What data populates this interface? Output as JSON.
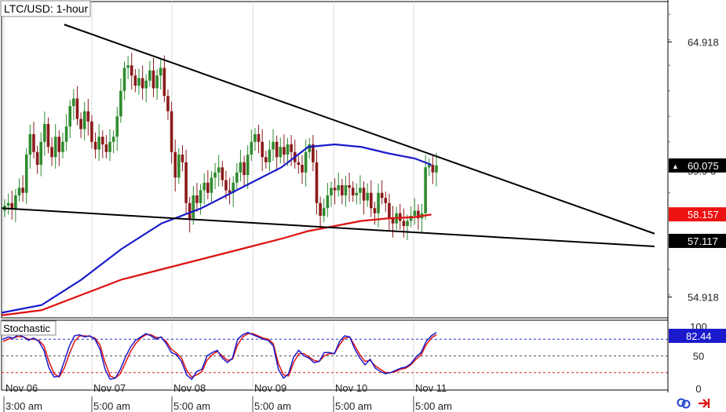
{
  "chart_data": {
    "type": "candlestick",
    "title": "LTC/USD: 1-hour",
    "ylim": [
      54.1,
      66.5
    ],
    "y_ticks": [
      64.918,
      54.918
    ],
    "y_tick_labels": [
      "64.918",
      "54.918"
    ],
    "x_dates": [
      "Nov 06",
      "Nov 07",
      "Nov 08",
      "Nov 09",
      "Nov 10",
      "Nov 11"
    ],
    "x_times": [
      "3:00 am",
      "5:00 am",
      "5:00 am",
      "5:00 am",
      "5:00 am",
      "5:00 am"
    ],
    "price_tags": [
      {
        "label": "60.075",
        "value": 60.075,
        "color": "#000000",
        "text_color": "#ffffff",
        "marker": "▲"
      },
      {
        "label": "58.157",
        "value": 58.157,
        "color": "#ee1111",
        "text_color": "#ffffff"
      },
      {
        "label": "57.117",
        "value": 57.117,
        "color": "#000000",
        "text_color": "#ffffff"
      }
    ],
    "hidden_tag_partial": "59.9 6",
    "candle_closes": [
      58.5,
      58.6,
      58.4,
      58.9,
      59.2,
      59.0,
      60.5,
      61.3,
      60.6,
      60.1,
      61.0,
      61.7,
      60.8,
      60.4,
      61.2,
      60.6,
      61.0,
      61.6,
      62.4,
      62.7,
      61.9,
      61.5,
      62.2,
      61.8,
      61.0,
      60.7,
      61.2,
      60.9,
      60.6,
      61.0,
      61.2,
      62.0,
      63.0,
      63.9,
      64.0,
      63.6,
      63.2,
      63.5,
      63.1,
      63.4,
      63.8,
      63.1,
      63.6,
      63.9,
      62.8,
      62.2,
      60.6,
      59.6,
      60.5,
      60.2,
      58.6,
      58.0,
      58.9,
      58.6,
      59.1,
      59.4,
      59.0,
      59.6,
      59.8,
      60.0,
      59.5,
      59.1,
      59.0,
      59.4,
      59.8,
      60.2,
      59.7,
      60.5,
      61.0,
      61.3,
      61.0,
      60.4,
      60.2,
      60.7,
      61.0,
      60.4,
      60.8,
      60.5,
      60.9,
      60.6,
      60.2,
      60.1,
      59.8,
      60.6,
      60.9,
      60.2,
      58.6,
      58.1,
      58.4,
      58.9,
      59.2,
      59.1,
      59.3,
      58.9,
      59.3,
      59.2,
      58.9,
      59.0,
      59.2,
      58.7,
      59.0,
      58.4,
      58.2,
      59.0,
      58.8,
      58.6,
      58.0,
      57.8,
      58.2,
      57.9,
      57.7,
      57.9,
      58.1,
      58.3,
      58.0,
      58.2,
      60.0,
      60.1,
      59.8,
      60.08
    ],
    "lines": [
      {
        "name": "upper-trendline",
        "color": "#000000",
        "x": [
          0.094,
          0.98
        ],
        "y": [
          65.6,
          57.4
        ]
      },
      {
        "name": "lower-trendline",
        "color": "#000000",
        "x": [
          0.0,
          0.98
        ],
        "y": [
          58.4,
          56.9
        ]
      }
    ],
    "ma_fast": {
      "color": "#1a1acc",
      "x": [
        0.0,
        0.06,
        0.12,
        0.18,
        0.24,
        0.3,
        0.36,
        0.42,
        0.46,
        0.5,
        0.54,
        0.58,
        0.62,
        0.645
      ],
      "y": [
        54.3,
        54.6,
        55.6,
        56.8,
        57.8,
        58.4,
        59.2,
        60.0,
        60.8,
        60.9,
        60.8,
        60.55,
        60.35,
        60.1
      ]
    },
    "ma_slow": {
      "color": "#dd1111",
      "x": [
        0.0,
        0.06,
        0.12,
        0.18,
        0.24,
        0.3,
        0.36,
        0.42,
        0.46,
        0.5,
        0.54,
        0.58,
        0.62,
        0.645
      ],
      "y": [
        54.2,
        54.4,
        55.0,
        55.6,
        56.0,
        56.4,
        56.8,
        57.2,
        57.5,
        57.7,
        57.9,
        58.0,
        58.05,
        58.15
      ]
    },
    "stochastic": {
      "label": "Stochastic",
      "tick_labels": [
        "100",
        "50",
        "0"
      ],
      "value_label": "82.44",
      "levels": [
        80,
        50,
        20
      ],
      "ylim": [
        0,
        100
      ],
      "k_color": "#1a1acc",
      "d_color": "#dd1111",
      "k": [
        80,
        84,
        82,
        88,
        84,
        78,
        82,
        76,
        60,
        28,
        12,
        14,
        40,
        68,
        86,
        88,
        84,
        86,
        80,
        62,
        26,
        8,
        10,
        26,
        48,
        66,
        78,
        84,
        90,
        86,
        80,
        84,
        72,
        56,
        52,
        40,
        16,
        8,
        22,
        26,
        50,
        56,
        60,
        46,
        38,
        46,
        80,
        88,
        92,
        88,
        84,
        80,
        78,
        68,
        26,
        10,
        18,
        48,
        60,
        50,
        46,
        38,
        40,
        56,
        56,
        54,
        76,
        86,
        84,
        62,
        46,
        34,
        44,
        28,
        22,
        18,
        20,
        24,
        28,
        30,
        36,
        48,
        56,
        76,
        86,
        92
      ],
      "d": [
        76,
        80,
        82,
        85,
        84,
        80,
        80,
        78,
        68,
        40,
        18,
        12,
        28,
        54,
        76,
        86,
        86,
        85,
        82,
        70,
        38,
        14,
        10,
        18,
        38,
        58,
        72,
        82,
        88,
        88,
        83,
        83,
        76,
        62,
        55,
        46,
        24,
        12,
        16,
        22,
        42,
        52,
        58,
        50,
        42,
        44,
        70,
        84,
        90,
        90,
        86,
        82,
        80,
        72,
        36,
        16,
        14,
        38,
        54,
        54,
        48,
        42,
        40,
        50,
        54,
        54,
        70,
        82,
        84,
        68,
        52,
        40,
        42,
        32,
        26,
        20,
        20,
        22,
        26,
        28,
        34,
        44,
        52,
        70,
        82,
        88
      ]
    },
    "grid": true,
    "legend": "none"
  },
  "colors": {
    "up_candle": "#2e8b2e",
    "down_candle": "#8b1a1a",
    "background": "#ffffff",
    "grid": "#dddddd",
    "axis": "#000000",
    "stoch_line_80": "#2233cc",
    "stoch_line_20": "#cc2222",
    "stoch_tag": "#1a1acc"
  },
  "toolbar_icons": [
    "link-icon",
    "arrow-exit-icon"
  ]
}
